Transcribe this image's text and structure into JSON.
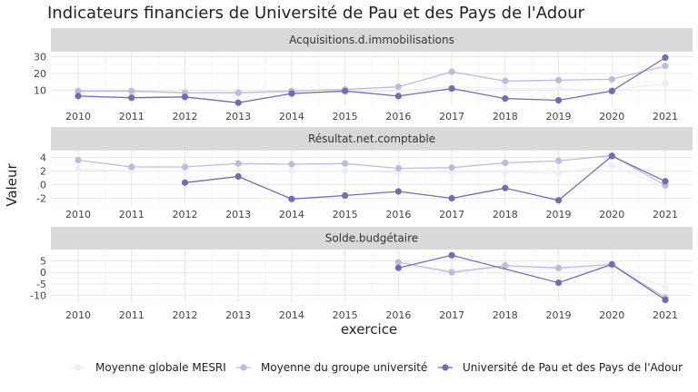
{
  "chart_data": {
    "type": "line",
    "title": "Indicateurs financiers de Université de Pau et des Pays de l'Adour",
    "xlabel": "exercice",
    "ylabel": "Valeur",
    "x": [
      2010,
      2011,
      2012,
      2013,
      2014,
      2015,
      2016,
      2017,
      2018,
      2019,
      2020,
      2021
    ],
    "legend_position": "bottom",
    "series_styles": [
      {
        "name": "Moyenne globale MESRI",
        "color": "#eeeef5"
      },
      {
        "name": "Moyenne du groupe université",
        "color": "#bcbddc"
      },
      {
        "name": "Université de Pau et des Pays de l'Adour",
        "color": "#756bb1"
      }
    ],
    "panels": [
      {
        "title": "Acquisitions.d.immobilisations",
        "ylim": [
          1,
          33
        ],
        "yticks": [
          10,
          20,
          30
        ],
        "series": [
          {
            "name": "Moyenne globale MESRI",
            "values": [
              9,
              9,
              8.5,
              8,
              8.5,
              9,
              9.5,
              12,
              11,
              11,
              10,
              14
            ]
          },
          {
            "name": "Moyenne du groupe université",
            "values": [
              9.5,
              9.5,
              8.5,
              8.5,
              9.5,
              10.5,
              12,
              21,
              15.5,
              16,
              16.5,
              24.5
            ]
          },
          {
            "name": "Université de Pau et des Pays de l'Adour",
            "values": [
              6.5,
              5.5,
              6,
              2.5,
              8,
              9.5,
              6.5,
              11,
              5,
              4,
              9.5,
              29.5
            ]
          }
        ]
      },
      {
        "title": "Résultat.net.comptable",
        "ylim": [
          -3,
          5
        ],
        "yticks": [
          -2,
          0,
          2,
          4
        ],
        "series": [
          {
            "name": "Moyenne globale MESRI",
            "values": [
              2.3,
              2,
              2,
              2,
              2,
              2,
              1.8,
              1.8,
              1.8,
              1.7,
              2.8,
              -0.3
            ]
          },
          {
            "name": "Moyenne du groupe université",
            "values": [
              3.6,
              2.6,
              2.6,
              3.1,
              3,
              3.1,
              2.4,
              2.5,
              3.2,
              3.5,
              4.3,
              -0.1
            ]
          },
          {
            "name": "Université de Pau et des Pays de l'Adour",
            "values": [
              null,
              null,
              0.3,
              1.2,
              -2.1,
              -1.6,
              -1,
              -2,
              -0.5,
              -2.3,
              4.2,
              0.5
            ]
          }
        ]
      },
      {
        "title": "Solde.budgétaire",
        "ylim": [
          -13,
          10
        ],
        "yticks": [
          -10,
          -5,
          0,
          5
        ],
        "series": [
          {
            "name": "Moyenne globale MESRI",
            "values": [
              null,
              null,
              null,
              null,
              null,
              null,
              2.5,
              1,
              2,
              1.5,
              2.5,
              -6.5
            ]
          },
          {
            "name": "Moyenne du groupe université",
            "values": [
              null,
              null,
              null,
              null,
              null,
              null,
              4.5,
              0,
              3,
              2,
              3.5,
              -11
            ]
          },
          {
            "name": "Université de Pau et des Pays de l'Adour",
            "values": [
              null,
              null,
              null,
              null,
              null,
              null,
              2,
              7.5,
              null,
              -4.5,
              3.5,
              -12
            ]
          }
        ]
      }
    ]
  }
}
